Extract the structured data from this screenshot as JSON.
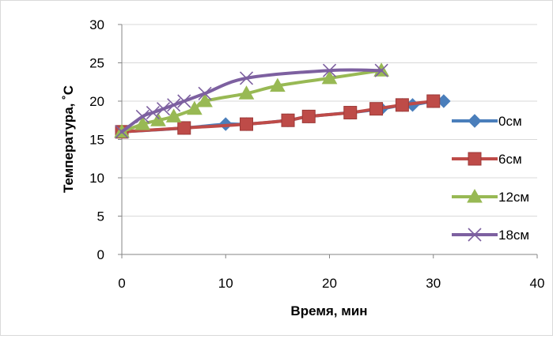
{
  "chart_data": {
    "type": "scatter",
    "xlabel": "Время, мин",
    "ylabel": "Температура, ˚С",
    "xlim": [
      0,
      40
    ],
    "ylim": [
      0,
      30
    ],
    "xticks": [
      0,
      10,
      20,
      30,
      40
    ],
    "yticks": [
      0,
      5,
      10,
      15,
      20,
      25,
      30
    ],
    "grid": "horizontal",
    "legend_position": "right",
    "series": [
      {
        "name": "0см",
        "color": "#4a7ebb",
        "marker": "diamond",
        "x": [
          0,
          6,
          10,
          12,
          16,
          18,
          22,
          25,
          27,
          28,
          30,
          31
        ],
        "y": [
          16,
          16.5,
          17,
          17,
          17.5,
          18,
          18.5,
          19,
          19.5,
          19.5,
          20,
          20
        ]
      },
      {
        "name": "6см",
        "color": "#be4b48",
        "marker": "square",
        "x": [
          0,
          6,
          12,
          16,
          18,
          22,
          24.5,
          27,
          30
        ],
        "y": [
          16,
          16.5,
          17,
          17.5,
          18,
          18.5,
          19,
          19.5,
          20
        ]
      },
      {
        "name": "12см",
        "color": "#98b954",
        "marker": "triangle",
        "x": [
          0,
          2,
          3.5,
          5,
          7,
          8,
          12,
          15,
          20,
          25
        ],
        "y": [
          16,
          17,
          17.5,
          18,
          19,
          20,
          21,
          22,
          23,
          24
        ]
      },
      {
        "name": "18см",
        "color": "#7d60a0",
        "marker": "x",
        "x": [
          0,
          2,
          3,
          4,
          5,
          6,
          8,
          12,
          20,
          25
        ],
        "y": [
          16,
          18,
          18.5,
          19,
          19.5,
          20,
          21,
          23,
          24,
          24
        ]
      }
    ]
  }
}
